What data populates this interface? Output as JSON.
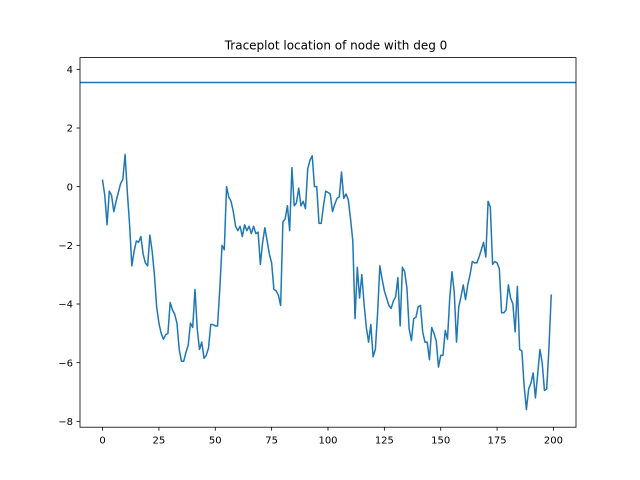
{
  "chart_data": {
    "type": "line",
    "title": "Traceplot location of node with deg 0",
    "xlabel": "",
    "ylabel": "",
    "xlim": [
      -10,
      210
    ],
    "ylim": [
      -8.2,
      4.4
    ],
    "xticks": [
      0,
      25,
      50,
      75,
      100,
      125,
      150,
      175,
      200
    ],
    "yticks": [
      -8,
      -6,
      -4,
      -2,
      0,
      2,
      4
    ],
    "grid": false,
    "reference_line": {
      "y": 3.55
    },
    "series": [
      {
        "color": "#1f77b4",
        "x": [
          0,
          1,
          2,
          3,
          4,
          5,
          6,
          7,
          8,
          9,
          10,
          11,
          12,
          13,
          14,
          15,
          16,
          17,
          18,
          19,
          20,
          21,
          22,
          23,
          24,
          25,
          26,
          27,
          28,
          29,
          30,
          31,
          32,
          33,
          34,
          35,
          36,
          37,
          38,
          39,
          40,
          41,
          42,
          43,
          44,
          45,
          46,
          47,
          48,
          49,
          50,
          51,
          52,
          53,
          54,
          55,
          56,
          57,
          58,
          59,
          60,
          61,
          62,
          63,
          64,
          65,
          66,
          67,
          68,
          69,
          70,
          71,
          72,
          73,
          74,
          75,
          76,
          77,
          78,
          79,
          80,
          81,
          82,
          83,
          84,
          85,
          86,
          87,
          88,
          89,
          90,
          91,
          92,
          93,
          94,
          95,
          96,
          97,
          98,
          99,
          100,
          101,
          102,
          103,
          104,
          105,
          106,
          107,
          108,
          109,
          110,
          111,
          112,
          113,
          114,
          115,
          116,
          117,
          118,
          119,
          120,
          121,
          122,
          123,
          124,
          125,
          126,
          127,
          128,
          129,
          130,
          131,
          132,
          133,
          134,
          135,
          136,
          137,
          138,
          139,
          140,
          141,
          142,
          143,
          144,
          145,
          146,
          147,
          148,
          149,
          150,
          151,
          152,
          153,
          154,
          155,
          156,
          157,
          158,
          159,
          160,
          161,
          162,
          163,
          164,
          165,
          166,
          167,
          168,
          169,
          170,
          171,
          172,
          173,
          174,
          175,
          176,
          177,
          178,
          179,
          180,
          181,
          182,
          183,
          184,
          185,
          186,
          187,
          188,
          189,
          190,
          191,
          192,
          193,
          194,
          195,
          196,
          197,
          198,
          199
        ],
        "y": [
          0.22,
          -0.3,
          -1.3,
          -0.15,
          -0.3,
          -0.85,
          -0.5,
          -0.2,
          0.1,
          0.25,
          1.1,
          -0.2,
          -1.3,
          -2.7,
          -2.2,
          -1.85,
          -1.9,
          -1.7,
          -2.3,
          -2.6,
          -2.7,
          -1.65,
          -2.2,
          -3.0,
          -4.1,
          -4.65,
          -5.0,
          -5.2,
          -5.05,
          -5.0,
          -3.95,
          -4.2,
          -4.35,
          -4.65,
          -5.55,
          -5.95,
          -5.95,
          -5.65,
          -5.4,
          -4.65,
          -4.8,
          -3.5,
          -4.85,
          -5.55,
          -5.3,
          -5.85,
          -5.75,
          -5.5,
          -4.7,
          -4.7,
          -4.75,
          -4.75,
          -3.5,
          -2.0,
          -2.15,
          0.0,
          -0.35,
          -0.5,
          -0.85,
          -1.35,
          -1.5,
          -1.35,
          -1.7,
          -1.3,
          -1.5,
          -1.35,
          -1.6,
          -1.35,
          -1.6,
          -1.55,
          -2.65,
          -1.9,
          -1.4,
          -1.85,
          -2.3,
          -2.6,
          -3.5,
          -3.55,
          -3.7,
          -4.05,
          -1.2,
          -1.1,
          -0.65,
          -1.5,
          0.65,
          -0.65,
          -0.55,
          -0.05,
          -0.65,
          -0.5,
          -0.75,
          0.6,
          0.9,
          1.05,
          0.0,
          0.0,
          -1.25,
          -1.25,
          -0.65,
          -0.15,
          -0.2,
          -0.25,
          -0.85,
          -0.6,
          -0.4,
          -0.35,
          0.5,
          -0.4,
          -0.25,
          -0.45,
          -1.1,
          -1.85,
          -4.5,
          -2.75,
          -3.8,
          -3.0,
          -4.0,
          -4.8,
          -5.3,
          -4.7,
          -5.8,
          -5.55,
          -4.3,
          -2.7,
          -3.15,
          -3.55,
          -3.8,
          -4.05,
          -4.15,
          -3.9,
          -3.75,
          -3.1,
          -4.75,
          -2.75,
          -2.9,
          -3.45,
          -4.85,
          -5.25,
          -4.5,
          -4.45,
          -4.1,
          -4.05,
          -4.95,
          -5.3,
          -5.3,
          -5.9,
          -4.8,
          -5.0,
          -5.25,
          -6.15,
          -5.75,
          -5.75,
          -4.9,
          -5.2,
          -3.8,
          -2.9,
          -3.6,
          -5.3,
          -4.1,
          -3.75,
          -3.35,
          -3.85,
          -3.35,
          -3.0,
          -2.55,
          -2.6,
          -2.6,
          -2.4,
          -2.15,
          -1.9,
          -2.4,
          -0.5,
          -0.7,
          -2.65,
          -2.55,
          -2.6,
          -2.8,
          -4.3,
          -4.3,
          -4.2,
          -3.35,
          -3.8,
          -4.0,
          -4.95,
          -3.4,
          -5.55,
          -5.6,
          -6.8,
          -7.6,
          -6.9,
          -6.7,
          -6.35,
          -7.2,
          -6.4,
          -5.55,
          -6.0,
          -6.95,
          -6.9,
          -5.5,
          -3.7
        ]
      }
    ]
  }
}
